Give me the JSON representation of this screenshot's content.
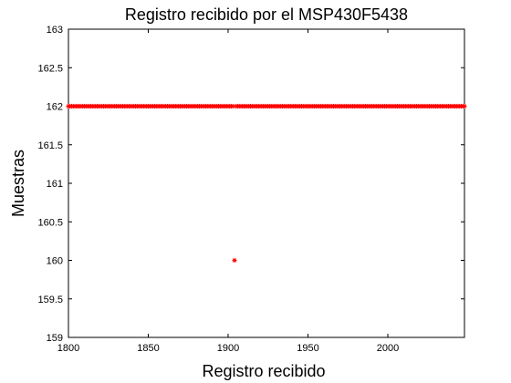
{
  "chart_data": {
    "type": "scatter",
    "title": "Registro recibido por el MSP430F5438",
    "xlabel": "Registro recibido",
    "ylabel": "Muestras",
    "xlim": [
      1800,
      2048
    ],
    "ylim": [
      159,
      163
    ],
    "x_ticks": [
      1800,
      1850,
      1900,
      1950,
      2000
    ],
    "y_ticks": [
      159,
      159.5,
      160,
      160.5,
      161,
      161.5,
      162,
      162.5,
      163
    ],
    "grid": false,
    "marker": "*",
    "marker_color": "#ff0000",
    "series": [
      {
        "baseline": {
          "y": 162,
          "x_start": 1800,
          "x_end": 2048,
          "x_step": 1
        },
        "outliers": [
          {
            "x": 1904,
            "y": 160
          }
        ]
      }
    ]
  }
}
